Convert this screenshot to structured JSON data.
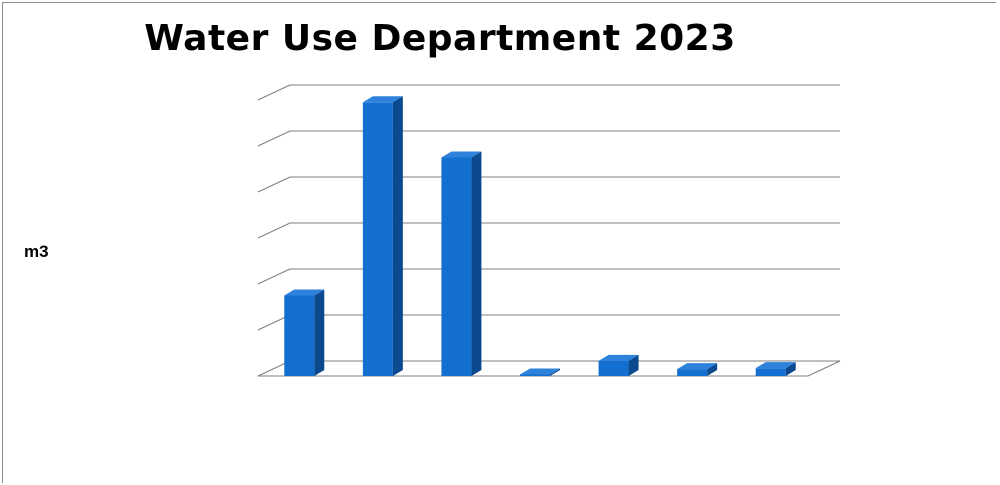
{
  "chart_data": {
    "type": "bar",
    "title": "Water Use Department 2023",
    "xlabel": "",
    "ylabel": "m3",
    "ylim": [
      0,
      6
    ],
    "grid": true,
    "legend": "none",
    "categories": [
      "",
      "",
      "",
      "",
      "",
      "",
      ""
    ],
    "values": [
      1.75,
      5.95,
      4.75,
      0.02,
      0.33,
      0.15,
      0.17
    ],
    "colors": {
      "bar_front": "#1470d0",
      "bar_side": "#0b4a8f",
      "bar_top": "#2f82dc",
      "grid": "#7f7f7f"
    }
  }
}
